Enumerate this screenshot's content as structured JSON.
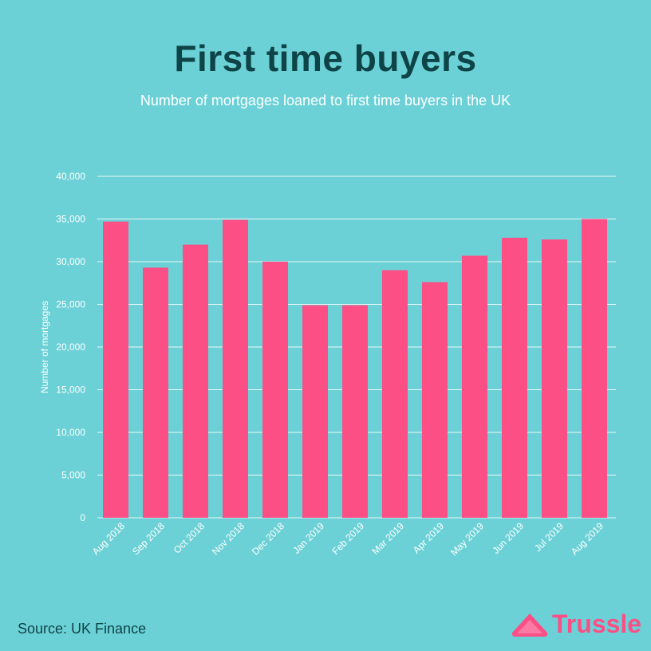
{
  "header": {
    "title": "First time buyers",
    "subtitle": "Number of mortgages loaned to first time buyers in the UK"
  },
  "footer": {
    "source": "Source: UK Finance",
    "brand": "Trussle"
  },
  "colors": {
    "background": "#6bd1d6",
    "bar": "#fb4f86",
    "title": "#0e4447",
    "grid": "#ffffff"
  },
  "chart_data": {
    "type": "bar",
    "title": "First time buyers",
    "subtitle": "Number of mortgages loaned to first time buyers in the UK",
    "xlabel": "",
    "ylabel": "Number of mortgages",
    "ylim": [
      0,
      40000
    ],
    "yticks": [
      0,
      5000,
      10000,
      15000,
      20000,
      25000,
      30000,
      35000,
      40000
    ],
    "ytick_labels": [
      "0",
      "5,000",
      "10,000",
      "15,000",
      "20,000",
      "25,000",
      "30,000",
      "35,000",
      "40,000"
    ],
    "grid": true,
    "categories": [
      "Aug 2018",
      "Sep 2018",
      "Oct 2018",
      "Nov 2018",
      "Dec 2018",
      "Jan 2019",
      "Feb 2019",
      "Mar 2019",
      "Apr 2019",
      "May 2019",
      "Jun 2019",
      "Jul 2019",
      "Aug 2019"
    ],
    "values": [
      34700,
      29300,
      32000,
      34900,
      30000,
      24900,
      24900,
      29000,
      27600,
      30700,
      32800,
      32600,
      35000
    ]
  }
}
